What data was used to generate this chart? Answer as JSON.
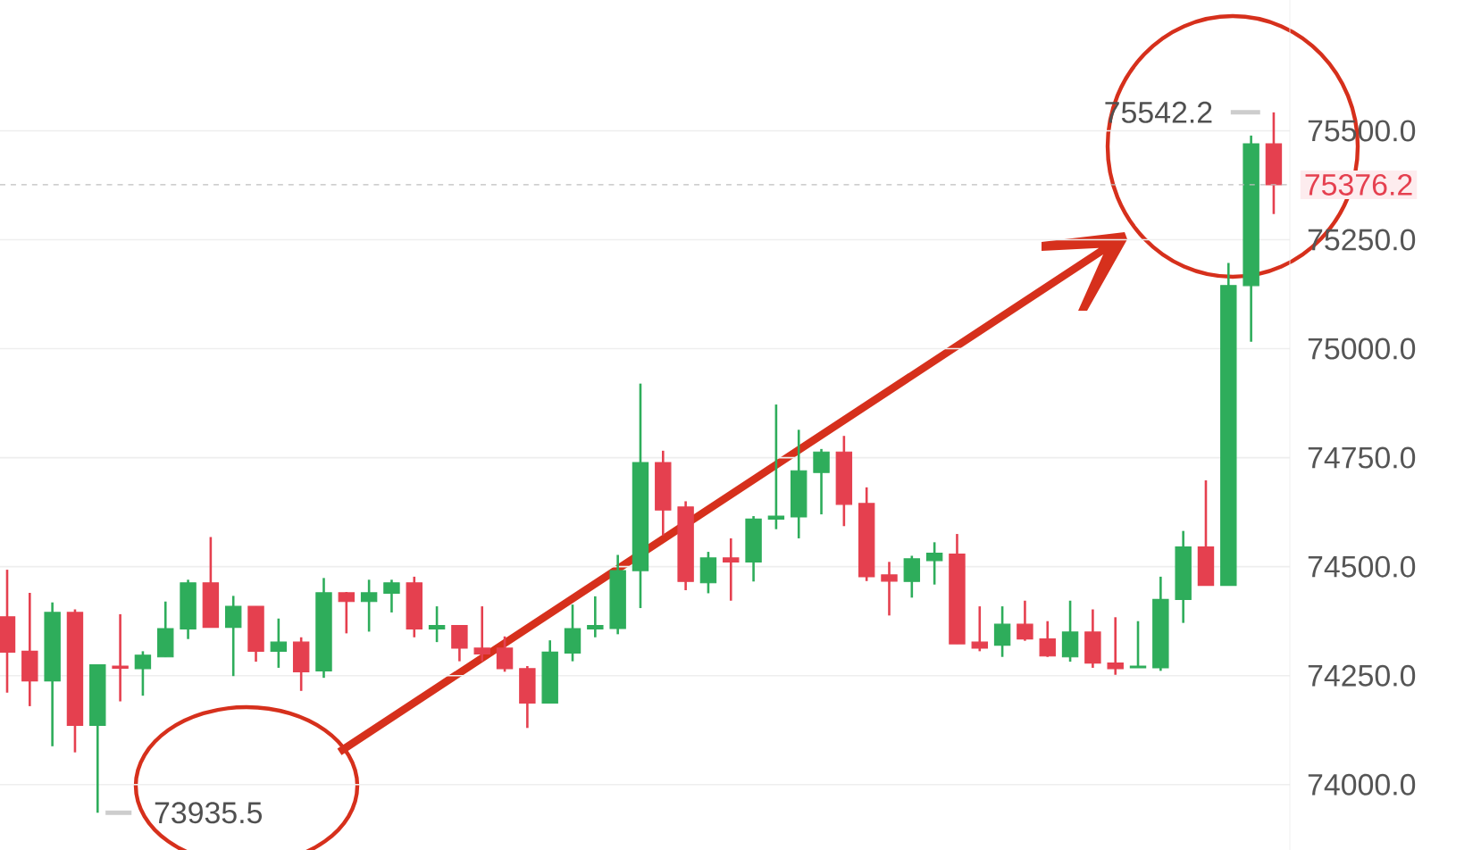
{
  "chart_data": {
    "type": "candlestick",
    "categories": [
      null,
      null,
      null,
      null,
      null,
      null,
      null,
      null,
      null,
      null,
      null,
      null,
      null,
      null,
      null,
      null,
      null,
      null,
      null,
      null,
      null,
      null,
      null,
      null,
      null,
      null,
      null,
      null,
      null,
      null,
      null,
      null,
      null,
      null,
      null,
      null,
      null,
      null,
      null,
      null,
      null,
      null,
      null,
      null,
      null,
      null,
      null,
      null,
      null,
      null,
      null,
      null,
      null,
      null,
      null,
      null,
      null
    ],
    "ohlc": [
      [
        74385,
        74493,
        74211,
        74304
      ],
      [
        74306,
        74440,
        74180,
        74238
      ],
      [
        74238,
        74418,
        74088,
        74395
      ],
      [
        74395,
        74402,
        74074,
        74136
      ],
      [
        74136,
        74275,
        73935.5,
        74275
      ],
      [
        74272,
        74391,
        74191,
        74267
      ],
      [
        74266,
        74306,
        74204,
        74297
      ],
      [
        74293,
        74420,
        74293,
        74358
      ],
      [
        74357,
        74470,
        74334,
        74463
      ],
      [
        74463,
        74568,
        74361,
        74361
      ],
      [
        74361,
        74433,
        74249,
        74409
      ],
      [
        74409,
        74409,
        74282,
        74306
      ],
      [
        74306,
        74381,
        74268,
        74327
      ],
      [
        74327,
        74338,
        74215,
        74259
      ],
      [
        74261,
        74474,
        74245,
        74440
      ],
      [
        74440,
        74442,
        74347,
        74420
      ],
      [
        74420,
        74470,
        74351,
        74440
      ],
      [
        74439,
        74470,
        74395,
        74463
      ],
      [
        74463,
        74477,
        74338,
        74357
      ],
      [
        74357,
        74409,
        74327,
        74365
      ],
      [
        74365,
        74365,
        74283,
        74313
      ],
      [
        74313,
        74409,
        74283,
        74300
      ],
      [
        74313,
        74340,
        74259,
        74266
      ],
      [
        74266,
        74272,
        74130,
        74187
      ],
      [
        74187,
        74331,
        74187,
        74304
      ],
      [
        74302,
        74413,
        74283,
        74358
      ],
      [
        74357,
        74432,
        74338,
        74365
      ],
      [
        74358,
        74527,
        74345,
        74491
      ],
      [
        74491,
        74920,
        74405,
        74739
      ],
      [
        74739,
        74766,
        74572,
        74630
      ],
      [
        74637,
        74650,
        74446,
        74466
      ],
      [
        74463,
        74534,
        74439,
        74520
      ],
      [
        74520,
        74565,
        74422,
        74511
      ],
      [
        74511,
        74616,
        74466,
        74609
      ],
      [
        74609,
        74872,
        74586,
        74616
      ],
      [
        74614,
        74814,
        74565,
        74720
      ],
      [
        74716,
        74770,
        74620,
        74763
      ],
      [
        74763,
        74800,
        74593,
        74643
      ],
      [
        74645,
        74682,
        74467,
        74477
      ],
      [
        74481,
        74511,
        74388,
        74467
      ],
      [
        74466,
        74525,
        74429,
        74518
      ],
      [
        74514,
        74556,
        74459,
        74531
      ],
      [
        74529,
        74575,
        74323,
        74323
      ],
      [
        74327,
        74409,
        74306,
        74313
      ],
      [
        74320,
        74409,
        74293,
        74368
      ],
      [
        74368,
        74422,
        74330,
        74334
      ],
      [
        74334,
        74375,
        74293,
        74295
      ],
      [
        74293,
        74422,
        74282,
        74350
      ],
      [
        74350,
        74402,
        74268,
        74279
      ],
      [
        74279,
        74384,
        74252,
        74266
      ],
      [
        74268,
        74375,
        74268,
        74272
      ],
      [
        74268,
        74477,
        74261,
        74425
      ],
      [
        74425,
        74582,
        74371,
        74545
      ],
      [
        74545,
        74698,
        74457,
        74457
      ],
      [
        74457,
        75197,
        74457,
        75145
      ],
      [
        75145,
        75489,
        75016,
        75470
      ],
      [
        75470,
        75542.2,
        75309,
        75376.2
      ]
    ],
    "colors": [
      "#e5404f",
      "#e5404f",
      "#2ead5b",
      "#e5404f",
      "#2ead5b",
      "#e5404f",
      "#2ead5b",
      "#2ead5b",
      "#2ead5b",
      "#e5404f",
      "#2ead5b",
      "#e5404f",
      "#2ead5b",
      "#e5404f",
      "#2ead5b",
      "#e5404f",
      "#2ead5b",
      "#2ead5b",
      "#e5404f",
      "#2ead5b",
      "#e5404f",
      "#e5404f",
      "#e5404f",
      "#e5404f",
      "#2ead5b",
      "#2ead5b",
      "#2ead5b",
      "#2ead5b",
      "#2ead5b",
      "#e5404f",
      "#e5404f",
      "#2ead5b",
      "#e5404f",
      "#2ead5b",
      "#2ead5b",
      "#2ead5b",
      "#2ead5b",
      "#e5404f",
      "#e5404f",
      "#e5404f",
      "#2ead5b",
      "#2ead5b",
      "#e5404f",
      "#e5404f",
      "#2ead5b",
      "#e5404f",
      "#e5404f",
      "#2ead5b",
      "#e5404f",
      "#e5404f",
      "#2ead5b",
      "#2ead5b",
      "#2ead5b",
      "#e5404f",
      "#2ead5b",
      "#2ead5b",
      "#e5404f"
    ],
    "ylim": [
      73850,
      75800
    ],
    "yticks": [
      {
        "value": 74000,
        "label": "74000.0"
      },
      {
        "value": 74250,
        "label": "74250.0"
      },
      {
        "value": 74500,
        "label": "74500.0"
      },
      {
        "value": 74750,
        "label": "74750.0"
      },
      {
        "value": 75000,
        "label": "75000.0"
      },
      {
        "value": 75250,
        "label": "75250.0"
      },
      {
        "value": 75500,
        "label": "75500.0"
      }
    ],
    "grid": "y",
    "ref_lines": [
      {
        "axis": "y",
        "value": 75376.2,
        "label": "75376.2",
        "color": "#bebebe",
        "line_style": "dashed"
      }
    ],
    "annotations": [
      "73935.5",
      "75542.2"
    ]
  }
}
